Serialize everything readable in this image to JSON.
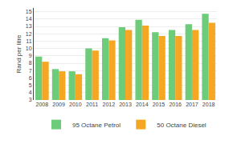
{
  "chart_data": {
    "type": "bar",
    "categories": [
      "2008",
      "2009",
      "2010",
      "2011",
      "2012",
      "2013",
      "2014",
      "2015",
      "2016",
      "2017",
      "2018"
    ],
    "series": [
      {
        "name": "95 Octane Petrol",
        "color": "#6dcc7a",
        "values": [
          8.9,
          7.2,
          6.9,
          10.0,
          11.4,
          12.9,
          13.9,
          12.2,
          12.5,
          13.3,
          14.7
        ]
      },
      {
        "name": "50 Octane Diesel",
        "color": "#f5a623",
        "values": [
          8.2,
          6.9,
          6.5,
          9.7,
          11.1,
          12.5,
          13.1,
          11.7,
          11.7,
          12.5,
          13.5
        ]
      }
    ],
    "ylabel": "Rand per litre",
    "ylim": [
      3.0,
      15.5
    ],
    "yticks": [
      3,
      4,
      5,
      6,
      7,
      8,
      9,
      10,
      11,
      12,
      13,
      14,
      15
    ],
    "grid": true,
    "legend": "bottom"
  }
}
